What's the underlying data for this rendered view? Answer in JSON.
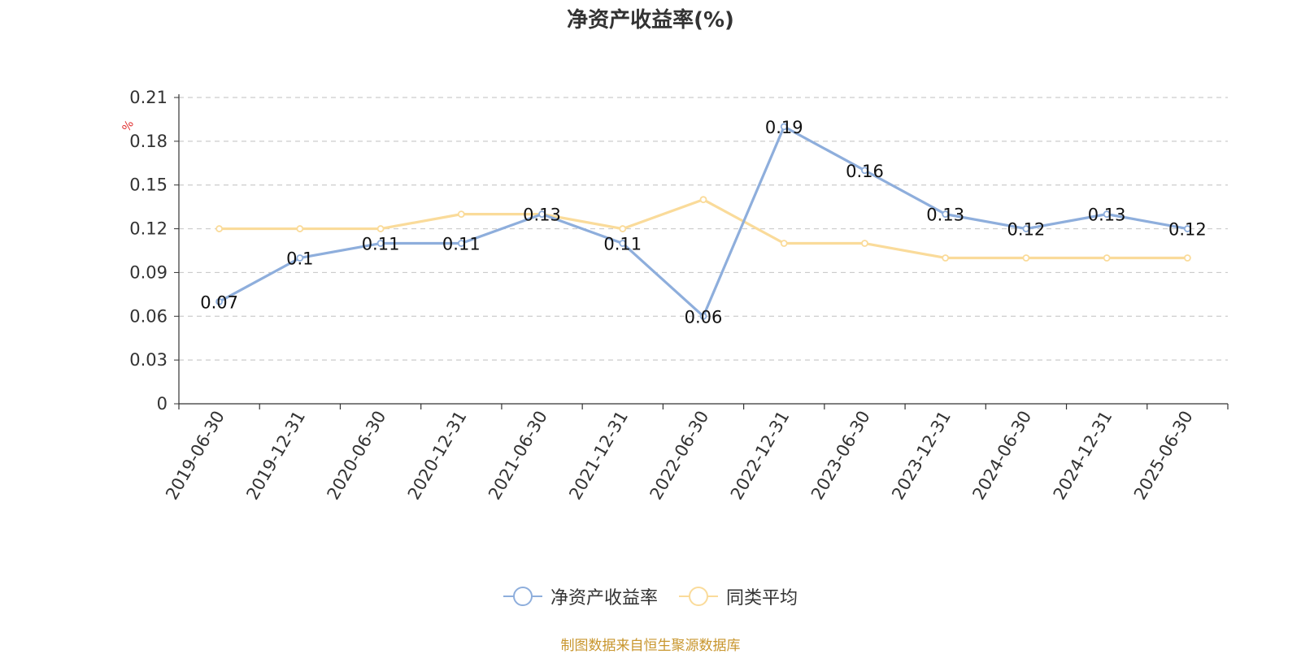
{
  "chart_data": {
    "type": "line",
    "title": "净资产收益率(%)",
    "ylabel": "%",
    "xlabel": "",
    "categories": [
      "2019-06-30",
      "2019-12-31",
      "2020-06-30",
      "2020-12-31",
      "2021-06-30",
      "2021-12-31",
      "2022-06-30",
      "2022-12-31",
      "2023-06-30",
      "2023-12-31",
      "2024-06-30",
      "2024-12-31",
      "2025-06-30"
    ],
    "ylim": [
      0,
      0.21
    ],
    "yticks": [
      "0",
      "0.03",
      "0.06",
      "0.09",
      "0.12",
      "0.15",
      "0.18",
      "0.21"
    ],
    "grid": true,
    "legend_position": "bottom-center",
    "series": [
      {
        "name": "净资产收益率",
        "color": "#8eaedc",
        "show_labels": true,
        "values": [
          0.07,
          0.1,
          0.11,
          0.11,
          0.13,
          0.11,
          0.06,
          0.19,
          0.16,
          0.13,
          0.12,
          0.13,
          0.12
        ],
        "labels": [
          "0.07",
          "0.1",
          "0.11",
          "0.11",
          "0.13",
          "0.11",
          "0.06",
          "0.19",
          "0.16",
          "0.13",
          "0.12",
          "0.13",
          "0.12"
        ]
      },
      {
        "name": "同类平均",
        "color": "#fadb9a",
        "show_labels": false,
        "values": [
          0.12,
          0.12,
          0.12,
          0.13,
          0.13,
          0.12,
          0.14,
          0.11,
          0.11,
          0.1,
          0.1,
          0.1,
          0.1
        ]
      }
    ],
    "source": "制图数据来自恒生聚源数据库"
  }
}
